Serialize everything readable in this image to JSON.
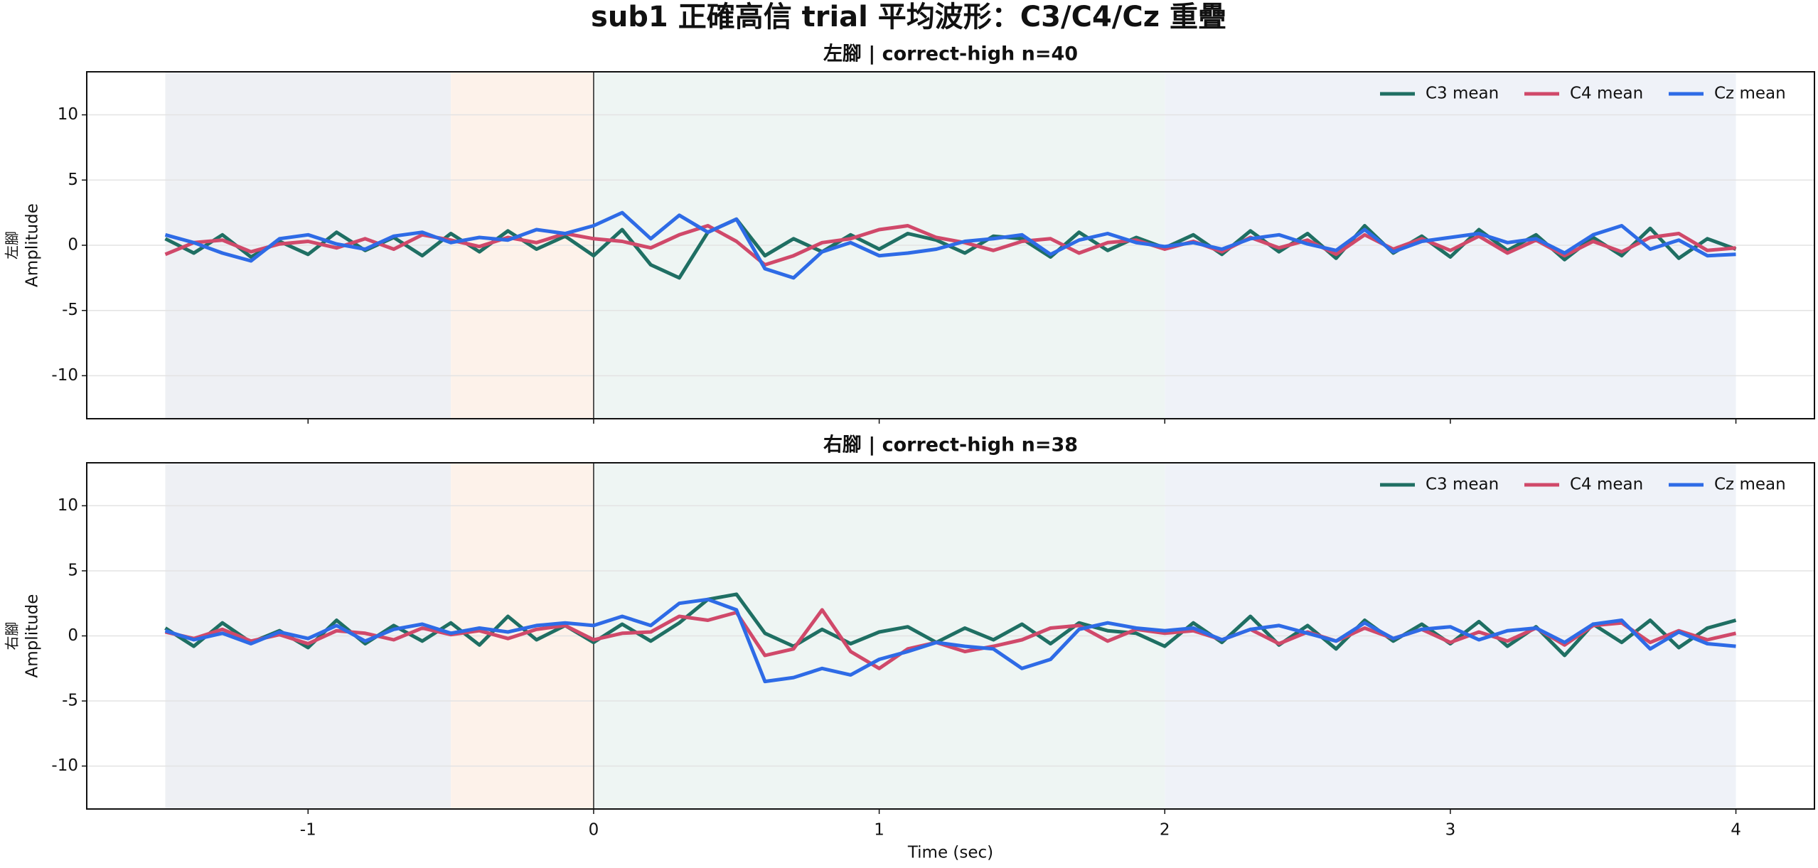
{
  "title": "sub1 正確高信 trial 平均波形：C3/C4/Cz 重疊",
  "chart_data": [
    {
      "type": "line",
      "title": "左腳 | correct-high n=40",
      "ylabel": [
        "左腳",
        "Amplitude"
      ],
      "x": [
        -1.5,
        -1.4,
        -1.3,
        -1.2,
        -1.1,
        -1.0,
        -0.9,
        -0.8,
        -0.7,
        -0.6,
        -0.5,
        -0.4,
        -0.3,
        -0.2,
        -0.1,
        0,
        0.1,
        0.2,
        0.3,
        0.4,
        0.5,
        0.6,
        0.7,
        0.8,
        0.9,
        1.0,
        1.1,
        1.2,
        1.3,
        1.4,
        1.5,
        1.6,
        1.7,
        1.8,
        1.9,
        2.0,
        2.1,
        2.2,
        2.3,
        2.4,
        2.5,
        2.6,
        2.7,
        2.8,
        2.9,
        3.0,
        3.1,
        3.2,
        3.3,
        3.4,
        3.5,
        3.6,
        3.7,
        3.8,
        3.9,
        4.0
      ],
      "series": [
        {
          "name": "C3 mean",
          "color": "#1f6f63",
          "values": [
            0.5,
            -0.6,
            0.8,
            -0.9,
            0.3,
            -0.7,
            1.0,
            -0.4,
            0.6,
            -0.8,
            0.9,
            -0.5,
            1.1,
            -0.3,
            0.7,
            -0.8,
            1.2,
            -1.5,
            -2.5,
            1.0,
            2.0,
            -0.8,
            0.5,
            -0.5,
            0.8,
            -0.3,
            0.9,
            0.4,
            -0.6,
            0.7,
            0.5,
            -0.9,
            1.0,
            -0.4,
            0.6,
            -0.2,
            0.8,
            -0.7,
            1.1,
            -0.5,
            0.9,
            -1.0,
            1.5,
            -0.6,
            0.7,
            -0.9,
            1.2,
            -0.4,
            0.8,
            -1.1,
            0.6,
            -0.8,
            1.3,
            -1.0,
            0.5,
            -0.3
          ]
        },
        {
          "name": "C4 mean",
          "color": "#d0496a",
          "values": [
            -0.7,
            0.2,
            0.4,
            -0.5,
            0.1,
            0.3,
            -0.2,
            0.5,
            -0.3,
            0.8,
            0.4,
            -0.1,
            0.6,
            0.2,
            0.9,
            0.5,
            0.3,
            -0.2,
            0.8,
            1.5,
            0.3,
            -1.5,
            -0.8,
            0.2,
            0.5,
            1.2,
            1.5,
            0.6,
            0.2,
            -0.4,
            0.3,
            0.5,
            -0.6,
            0.2,
            0.4,
            -0.3,
            0.3,
            -0.5,
            0.6,
            -0.2,
            0.4,
            -0.7,
            0.8,
            -0.3,
            0.5,
            -0.4,
            0.7,
            -0.6,
            0.4,
            -0.8,
            0.3,
            -0.5,
            0.6,
            0.9,
            -0.4,
            -0.2
          ]
        },
        {
          "name": "Cz mean",
          "color": "#2e6be6",
          "values": [
            0.8,
            0.2,
            -0.6,
            -1.2,
            0.5,
            0.8,
            0.1,
            -0.3,
            0.7,
            1.0,
            0.2,
            0.6,
            0.4,
            1.2,
            0.9,
            1.5,
            2.5,
            0.5,
            2.3,
            1.0,
            2.0,
            -1.8,
            -2.5,
            -0.5,
            0.2,
            -0.8,
            -0.6,
            -0.3,
            0.3,
            0.5,
            0.8,
            -0.7,
            0.4,
            0.9,
            0.2,
            -0.1,
            0.2,
            -0.3,
            0.5,
            0.8,
            0.1,
            -0.4,
            1.2,
            -0.5,
            0.3,
            0.6,
            0.9,
            0.2,
            0.5,
            -0.6,
            0.8,
            1.5,
            -0.3,
            0.4,
            -0.8,
            -0.7
          ]
        }
      ],
      "spans": [
        {
          "start": -1.5,
          "end": -0.5,
          "color": "#eef0f4"
        },
        {
          "start": -0.5,
          "end": 0,
          "color": "#fdf2ea"
        },
        {
          "start": 0,
          "end": 2,
          "color": "#eef5f3"
        },
        {
          "start": 2,
          "end": 4,
          "color": "#eff2f8"
        }
      ],
      "vline": 0,
      "xlim": [
        -1.775,
        4.275
      ],
      "xticks": [
        -1,
        0,
        1,
        2,
        3,
        4
      ],
      "show_xtick_labels": false,
      "ylim": [
        -13.3,
        13.3
      ],
      "yticks": [
        -10,
        -5,
        0,
        5,
        10
      ],
      "grid": true,
      "legend": "upper right"
    },
    {
      "type": "line",
      "title": "右腳 | correct-high n=38",
      "ylabel": [
        "右腳",
        "Amplitude"
      ],
      "xlabel": "Time (sec)",
      "x": [
        -1.5,
        -1.4,
        -1.3,
        -1.2,
        -1.1,
        -1.0,
        -0.9,
        -0.8,
        -0.7,
        -0.6,
        -0.5,
        -0.4,
        -0.3,
        -0.2,
        -0.1,
        0,
        0.1,
        0.2,
        0.3,
        0.4,
        0.5,
        0.6,
        0.7,
        0.8,
        0.9,
        1.0,
        1.1,
        1.2,
        1.3,
        1.4,
        1.5,
        1.6,
        1.7,
        1.8,
        1.9,
        2.0,
        2.1,
        2.2,
        2.3,
        2.4,
        2.5,
        2.6,
        2.7,
        2.8,
        2.9,
        3.0,
        3.1,
        3.2,
        3.3,
        3.4,
        3.5,
        3.6,
        3.7,
        3.8,
        3.9,
        4.0
      ],
      "series": [
        {
          "name": "C3 mean",
          "color": "#1f6f63",
          "values": [
            0.6,
            -0.8,
            1.0,
            -0.5,
            0.4,
            -0.9,
            1.2,
            -0.6,
            0.8,
            -0.4,
            1.0,
            -0.7,
            1.5,
            -0.3,
            0.8,
            -0.5,
            0.9,
            -0.4,
            1.0,
            2.8,
            3.2,
            0.2,
            -0.8,
            0.5,
            -0.6,
            0.3,
            0.7,
            -0.5,
            0.6,
            -0.3,
            0.9,
            -0.6,
            1.0,
            0.4,
            0.2,
            -0.8,
            1.0,
            -0.5,
            1.5,
            -0.7,
            0.8,
            -1.0,
            1.2,
            -0.4,
            0.9,
            -0.6,
            1.1,
            -0.8,
            0.7,
            -1.5,
            0.9,
            -0.5,
            1.2,
            -0.9,
            0.6,
            1.2
          ]
        },
        {
          "name": "C4 mean",
          "color": "#d0496a",
          "values": [
            0.3,
            -0.2,
            0.5,
            -0.4,
            0.1,
            -0.6,
            0.4,
            0.2,
            -0.3,
            0.6,
            0.1,
            0.4,
            -0.2,
            0.5,
            0.8,
            -0.3,
            0.2,
            0.3,
            1.5,
            1.2,
            1.8,
            -1.5,
            -1.0,
            2.0,
            -1.2,
            -2.5,
            -1.0,
            -0.5,
            -1.2,
            -0.8,
            -0.3,
            0.6,
            0.8,
            -0.4,
            0.5,
            0.2,
            0.4,
            -0.3,
            0.5,
            -0.6,
            0.3,
            -0.4,
            0.6,
            -0.2,
            0.5,
            -0.5,
            0.3,
            -0.4,
            0.6,
            -0.7,
            0.8,
            1.0,
            -0.5,
            0.4,
            -0.3,
            0.2
          ]
        },
        {
          "name": "Cz mean",
          "color": "#2e6be6",
          "values": [
            0.4,
            -0.3,
            0.2,
            -0.6,
            0.3,
            -0.2,
            0.8,
            -0.4,
            0.5,
            0.9,
            0.2,
            0.6,
            0.3,
            0.8,
            1.0,
            0.8,
            1.5,
            0.8,
            2.5,
            2.8,
            2.0,
            -3.5,
            -3.2,
            -2.5,
            -3.0,
            -1.8,
            -1.2,
            -0.5,
            -0.8,
            -1.0,
            -2.5,
            -1.8,
            0.5,
            1.0,
            0.6,
            0.4,
            0.6,
            -0.3,
            0.5,
            0.8,
            0.2,
            -0.4,
            1.0,
            -0.2,
            0.5,
            0.7,
            -0.3,
            0.4,
            0.6,
            -0.5,
            0.9,
            1.2,
            -1.0,
            0.3,
            -0.6,
            -0.8
          ]
        }
      ],
      "spans": [
        {
          "start": -1.5,
          "end": -0.5,
          "color": "#eef0f4"
        },
        {
          "start": -0.5,
          "end": 0,
          "color": "#fdf2ea"
        },
        {
          "start": 0,
          "end": 2,
          "color": "#eef5f3"
        },
        {
          "start": 2,
          "end": 4,
          "color": "#eff2f8"
        }
      ],
      "vline": 0,
      "xlim": [
        -1.775,
        4.275
      ],
      "xticks": [
        -1,
        0,
        1,
        2,
        3,
        4
      ],
      "show_xtick_labels": true,
      "ylim": [
        -13.3,
        13.3
      ],
      "yticks": [
        -10,
        -5,
        0,
        5,
        10
      ],
      "grid": true,
      "legend": "upper right"
    }
  ]
}
